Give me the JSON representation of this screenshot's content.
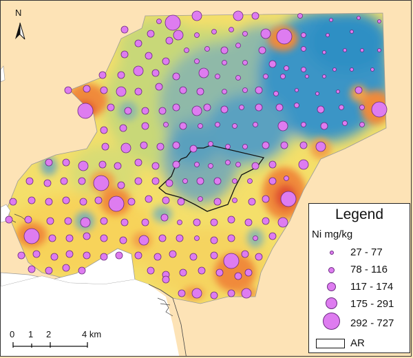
{
  "legend": {
    "title": "Legend",
    "subtitle": "Ni mg/kg",
    "classes": [
      {
        "label": "27 - 77"
      },
      {
        "label": "78 - 116"
      },
      {
        "label": "117 - 174"
      },
      {
        "label": "175 - 291"
      },
      {
        "label": "292 - 727"
      }
    ],
    "boundary_label": "AR"
  },
  "north_arrow": {
    "label": "N"
  },
  "scale_bar": {
    "ticks": [
      "0",
      "1",
      "2",
      "4 km"
    ]
  },
  "colors": {
    "background": "#fde3b6",
    "low": "#2f8fc4",
    "mid_low": "#7fb0b0",
    "mid": "#c8d878",
    "mid_high": "#f7d35a",
    "high": "#f08a3a",
    "very_high": "#e05030",
    "symbol_fill": "#de7cf0"
  }
}
